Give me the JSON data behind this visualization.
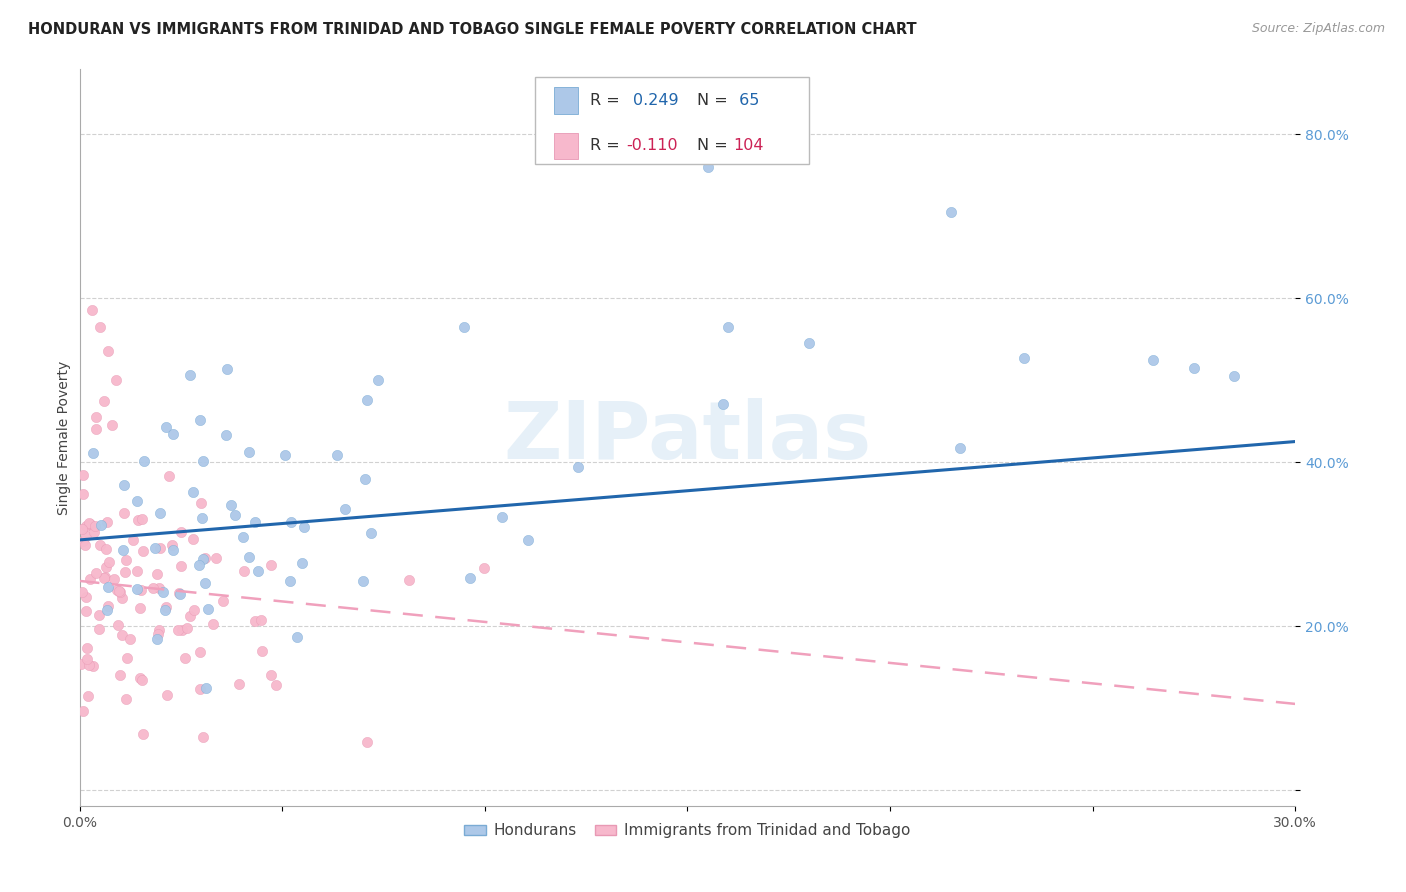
{
  "title": "HONDURAN VS IMMIGRANTS FROM TRINIDAD AND TOBAGO SINGLE FEMALE POVERTY CORRELATION CHART",
  "source": "Source: ZipAtlas.com",
  "ylabel": "Single Female Poverty",
  "xlim": [
    0.0,
    0.3
  ],
  "ylim": [
    -0.02,
    0.88
  ],
  "yticks": [
    0.0,
    0.2,
    0.4,
    0.6,
    0.8
  ],
  "xticks": [
    0.0,
    0.05,
    0.1,
    0.15,
    0.2,
    0.25,
    0.3
  ],
  "xtick_labels": [
    "0.0%",
    "",
    "",
    "",
    "",
    "",
    "30.0%"
  ],
  "ytick_labels": [
    "",
    "20.0%",
    "40.0%",
    "60.0%",
    "80.0%"
  ],
  "R_honduran": 0.249,
  "N_honduran": 65,
  "R_trinidad": -0.11,
  "N_trinidad": 104,
  "blue_color": "#adc8e8",
  "blue_edge_color": "#7aabd4",
  "blue_line_color": "#2166ac",
  "pink_color": "#f7b8cc",
  "pink_edge_color": "#e899b4",
  "pink_line_color": "#e05880",
  "pink_dash_color": "#f0a0bc",
  "watermark": "ZIPatlas",
  "legend_label_1": "Hondurans",
  "legend_label_2": "Immigrants from Trinidad and Tobago",
  "title_fontsize": 10.5,
  "axis_label_fontsize": 10,
  "tick_fontsize": 10,
  "source_fontsize": 9,
  "blue_line_intercept": 0.305,
  "blue_line_slope": 0.4,
  "pink_line_intercept": 0.255,
  "pink_line_slope": -0.5
}
